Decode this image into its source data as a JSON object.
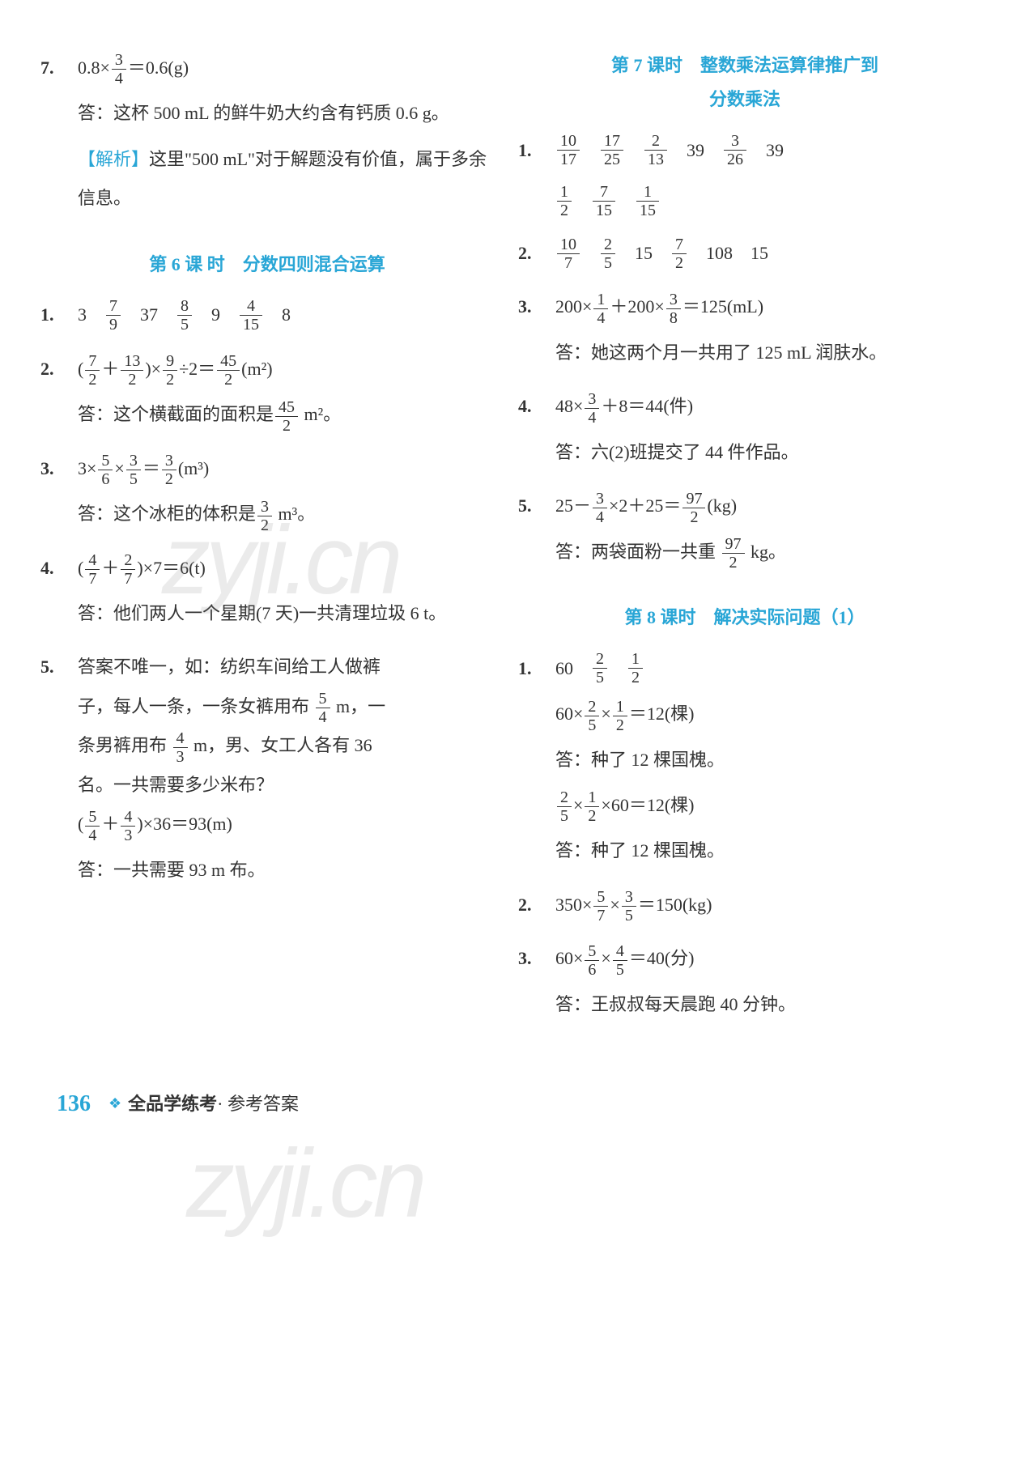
{
  "colors": {
    "accent": "#29a6d6",
    "text": "#333333",
    "background": "#ffffff",
    "watermark": "rgba(120,120,120,0.15)"
  },
  "watermark": {
    "text": "zyji.cn"
  },
  "left": {
    "p7": {
      "num": "7.",
      "expr_pre": "0.8×",
      "frac": {
        "n": "3",
        "d": "4"
      },
      "expr_post": "＝0.6(g)",
      "ans": "答：这杯 500 mL 的鲜牛奶大约含有钙质 0.6 g。",
      "analysis_label": "【解析】",
      "analysis": "这里\"500 mL\"对于解题没有价值，属于多余信息。"
    },
    "heading6": "第 6 课 时　分数四则混合运算",
    "p1": {
      "num": "1.",
      "v1": "3",
      "f1": {
        "n": "7",
        "d": "9"
      },
      "v2": "37",
      "f2": {
        "n": "8",
        "d": "5"
      },
      "v3": "9",
      "f3": {
        "n": "4",
        "d": "15"
      },
      "v4": "8"
    },
    "p2": {
      "num": "2.",
      "head_open": "(",
      "fa": {
        "n": "7",
        "d": "2"
      },
      "plus": "＋",
      "fb": {
        "n": "13",
        "d": "2"
      },
      "head_close": ")×",
      "fc": {
        "n": "9",
        "d": "2"
      },
      "div": "÷2＝",
      "fr": {
        "n": "45",
        "d": "2"
      },
      "unit": "(m²)",
      "ans_pre": "答：这个横截面的面积是",
      "ans_frac": {
        "n": "45",
        "d": "2"
      },
      "ans_post": " m²。"
    },
    "p3": {
      "num": "3.",
      "pre": "3×",
      "fa": {
        "n": "5",
        "d": "6"
      },
      "mid1": "×",
      "fb": {
        "n": "3",
        "d": "5"
      },
      "mid2": "＝",
      "fr": {
        "n": "3",
        "d": "2"
      },
      "unit": "(m³)",
      "ans_pre": "答：这个冰柜的体积是",
      "ans_frac": {
        "n": "3",
        "d": "2"
      },
      "ans_post": " m³。"
    },
    "p4": {
      "num": "4.",
      "open": "(",
      "fa": {
        "n": "4",
        "d": "7"
      },
      "plus": "＋",
      "fb": {
        "n": "2",
        "d": "7"
      },
      "close": ")×7＝6(t)",
      "ans": "答：他们两人一个星期(7 天)一共清理垃圾 6 t。"
    },
    "p5": {
      "num": "5.",
      "line1": "答案不唯一，如：纺织车间给工人做裤",
      "line2_pre": "子，每人一条，一条女裤用布 ",
      "line2_frac": {
        "n": "5",
        "d": "4"
      },
      "line2_post": " m，一",
      "line3_pre": "条男裤用布 ",
      "line3_frac": {
        "n": "4",
        "d": "3"
      },
      "line3_post": " m，男、女工人各有 36",
      "line4": "名。一共需要多少米布？",
      "expr_open": "(",
      "fa": {
        "n": "5",
        "d": "4"
      },
      "plus": "＋",
      "fb": {
        "n": "4",
        "d": "3"
      },
      "expr_close": ")×36＝93(m)",
      "ans": "答：一共需要 93 m 布。"
    }
  },
  "right": {
    "heading7a": "第 7 课时　整数乘法运算律推广到",
    "heading7b": "分数乘法",
    "p1": {
      "num": "1.",
      "row1": [
        {
          "n": "10",
          "d": "17"
        },
        {
          "n": "17",
          "d": "25"
        },
        {
          "n": "2",
          "d": "13"
        },
        "39",
        {
          "n": "3",
          "d": "26"
        },
        "39"
      ],
      "row2": [
        {
          "n": "1",
          "d": "2"
        },
        {
          "n": "7",
          "d": "15"
        },
        {
          "n": "1",
          "d": "15"
        }
      ]
    },
    "p2": {
      "num": "2.",
      "row": [
        {
          "n": "10",
          "d": "7"
        },
        {
          "n": "2",
          "d": "5"
        },
        "15",
        {
          "n": "7",
          "d": "2"
        },
        "108",
        "15"
      ]
    },
    "p3": {
      "num": "3.",
      "pre": "200×",
      "fa": {
        "n": "1",
        "d": "4"
      },
      "mid": "＋200×",
      "fb": {
        "n": "3",
        "d": "8"
      },
      "post": "＝125(mL)",
      "ans": "答：她这两个月一共用了 125 mL 润肤水。"
    },
    "p4": {
      "num": "4.",
      "pre": "48×",
      "fa": {
        "n": "3",
        "d": "4"
      },
      "post": "＋8＝44(件)",
      "ans": "答：六(2)班提交了 44 件作品。"
    },
    "p5": {
      "num": "5.",
      "pre": "25－",
      "fa": {
        "n": "3",
        "d": "4"
      },
      "mid": "×2＋25＝",
      "fr": {
        "n": "97",
        "d": "2"
      },
      "unit": "(kg)",
      "ans_pre": "答：两袋面粉一共重 ",
      "ans_frac": {
        "n": "97",
        "d": "2"
      },
      "ans_post": " kg。"
    },
    "heading8": "第 8 课时　解决实际问题（1）",
    "p8_1": {
      "num": "1.",
      "row": [
        "60",
        {
          "n": "2",
          "d": "5"
        },
        {
          "n": "1",
          "d": "2"
        }
      ],
      "expr_pre": "60×",
      "fa": {
        "n": "2",
        "d": "5"
      },
      "mid": "×",
      "fb": {
        "n": "1",
        "d": "2"
      },
      "expr_post": "＝12(棵)",
      "ans1": "答：种了 12 棵国槐。",
      "expr2_fa": {
        "n": "2",
        "d": "5"
      },
      "expr2_mid": "×",
      "expr2_fb": {
        "n": "1",
        "d": "2"
      },
      "expr2_mid2": "×60＝12(棵)",
      "ans2": "答：种了 12 棵国槐。"
    },
    "p8_2": {
      "num": "2.",
      "pre": "350×",
      "fa": {
        "n": "5",
        "d": "7"
      },
      "mid": "×",
      "fb": {
        "n": "3",
        "d": "5"
      },
      "post": "＝150(kg)"
    },
    "p8_3": {
      "num": "3.",
      "pre": "60×",
      "fa": {
        "n": "5",
        "d": "6"
      },
      "mid": "×",
      "fb": {
        "n": "4",
        "d": "5"
      },
      "post": "＝40(分)",
      "ans": "答：王叔叔每天晨跑 40 分钟。"
    }
  },
  "footer": {
    "pagenum": "136",
    "title": "全品学练考",
    "sub": "· 参考答案"
  }
}
